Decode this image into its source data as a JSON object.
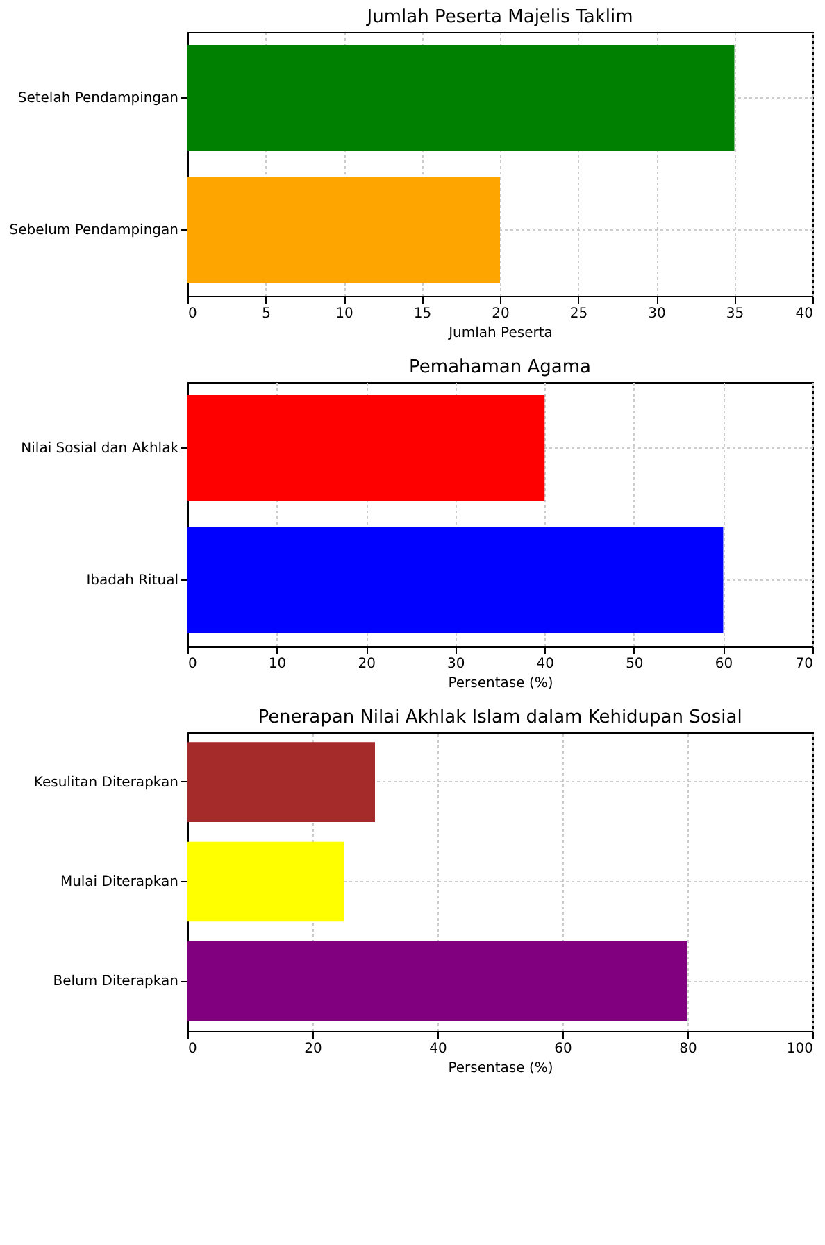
{
  "chart_data": [
    {
      "type": "bar",
      "orientation": "horizontal",
      "title": "Jumlah Peserta Majelis Taklim",
      "xlabel": "Jumlah Peserta",
      "categories": [
        "Setelah Pendampingan",
        "Sebelum Pendampingan"
      ],
      "values": [
        35,
        20
      ],
      "colors": [
        "#008000",
        "#ffa500"
      ],
      "xlim": [
        0,
        40
      ],
      "xticks": [
        0,
        5,
        10,
        15,
        20,
        25,
        30,
        35,
        40
      ],
      "grid": true
    },
    {
      "type": "bar",
      "orientation": "horizontal",
      "title": "Pemahaman Agama",
      "xlabel": "Persentase (%)",
      "categories": [
        "Nilai Sosial dan Akhlak",
        "Ibadah Ritual"
      ],
      "values": [
        40,
        60
      ],
      "colors": [
        "#ff0000",
        "#0000ff"
      ],
      "xlim": [
        0,
        70
      ],
      "xticks": [
        0,
        10,
        20,
        30,
        40,
        50,
        60,
        70
      ],
      "grid": true
    },
    {
      "type": "bar",
      "orientation": "horizontal",
      "title": "Penerapan Nilai Akhlak Islam dalam Kehidupan Sosial",
      "xlabel": "Persentase (%)",
      "categories": [
        "Kesulitan Diterapkan",
        "Mulai Diterapkan",
        "Belum Diterapkan"
      ],
      "values": [
        30,
        25,
        80
      ],
      "colors": [
        "#a52a2a",
        "#ffff00",
        "#800080"
      ],
      "xlim": [
        0,
        100
      ],
      "xticks": [
        0,
        20,
        40,
        60,
        80,
        100
      ],
      "grid": true
    }
  ]
}
